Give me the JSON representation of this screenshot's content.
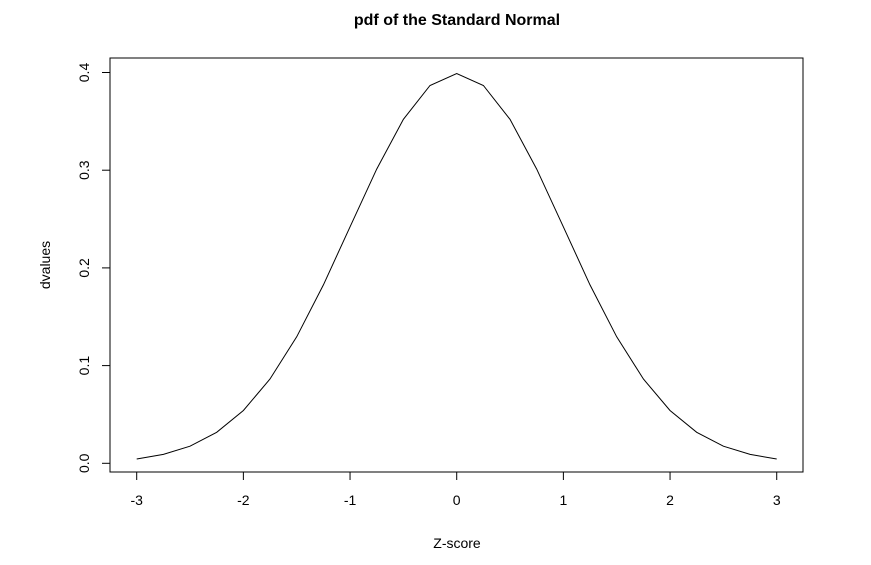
{
  "chart_data": {
    "type": "line",
    "title": "pdf of the Standard Normal",
    "xlabel": "Z-score",
    "ylabel": "dvalues",
    "xlim": [
      -3,
      3
    ],
    "ylim": [
      0,
      0.4
    ],
    "grid": false,
    "x_ticks": [
      "-3",
      "-2",
      "-1",
      "0",
      "1",
      "2",
      "3"
    ],
    "y_ticks": [
      "0.0",
      "0.1",
      "0.2",
      "0.3",
      "0.4"
    ],
    "line_color": "#000000",
    "x": [
      -3,
      -2.75,
      -2.5,
      -2.25,
      -2,
      -1.75,
      -1.5,
      -1.25,
      -1,
      -0.75,
      -0.5,
      -0.25,
      0,
      0.25,
      0.5,
      0.75,
      1,
      1.25,
      1.5,
      1.75,
      2,
      2.25,
      2.5,
      2.75,
      3
    ],
    "y": [
      0.0044,
      0.0091,
      0.0175,
      0.0317,
      0.054,
      0.0863,
      0.1295,
      0.1826,
      0.242,
      0.3011,
      0.3521,
      0.3867,
      0.3989,
      0.3867,
      0.3521,
      0.3011,
      0.242,
      0.1826,
      0.1295,
      0.0863,
      0.054,
      0.0317,
      0.0175,
      0.0091,
      0.0044
    ]
  }
}
